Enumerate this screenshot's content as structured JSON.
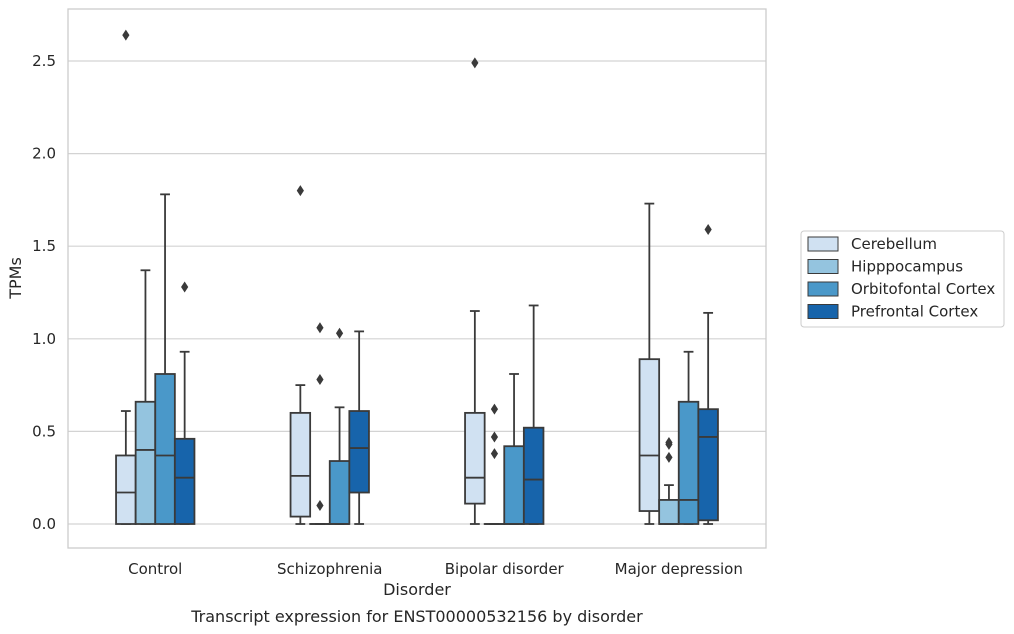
{
  "chart_data": {
    "type": "box",
    "xlabel": "Disorder",
    "ylabel": "TPMs",
    "caption": "Transcript expression for ENST00000532156 by disorder",
    "ylim": [
      -0.13,
      2.78
    ],
    "yticks": [
      "0.0",
      "0.5",
      "1.0",
      "1.5",
      "2.0",
      "2.5"
    ],
    "grid": "horizontal",
    "legend_position": "right",
    "categories": [
      "Control",
      "Schizophrenia",
      "Bipolar disorder",
      "Major depression"
    ],
    "series": [
      {
        "name": "Cerebellum",
        "color": "#d0e1f2",
        "boxes": [
          {
            "min": 0.0,
            "q1": 0.0,
            "median": 0.17,
            "q3": 0.37,
            "max": 0.61,
            "outliers": [
              2.64
            ]
          },
          {
            "min": 0.0,
            "q1": 0.04,
            "median": 0.26,
            "q3": 0.6,
            "max": 0.75,
            "outliers": [
              1.8
            ]
          },
          {
            "min": 0.0,
            "q1": 0.11,
            "median": 0.25,
            "q3": 0.6,
            "max": 1.15,
            "outliers": [
              2.49
            ]
          },
          {
            "min": 0.0,
            "q1": 0.07,
            "median": 0.37,
            "q3": 0.89,
            "max": 1.73,
            "outliers": []
          }
        ]
      },
      {
        "name": "Hipppocampus",
        "color": "#94c4df",
        "boxes": [
          {
            "min": 0.0,
            "q1": 0.0,
            "median": 0.4,
            "q3": 0.66,
            "max": 1.37,
            "outliers": []
          },
          {
            "min": 0.0,
            "q1": 0.0,
            "median": 0.0,
            "q3": 0.0,
            "max": 0.0,
            "outliers": [
              0.1,
              0.78,
              1.06
            ]
          },
          {
            "min": 0.0,
            "q1": 0.0,
            "median": 0.0,
            "q3": 0.0,
            "max": 0.0,
            "outliers": [
              0.38,
              0.47,
              0.62
            ]
          },
          {
            "min": 0.0,
            "q1": 0.0,
            "median": 0.0,
            "q3": 0.13,
            "max": 0.21,
            "outliers": [
              0.36,
              0.43,
              0.44
            ]
          }
        ]
      },
      {
        "name": "Orbitofontal Cortex",
        "color": "#4a98c9",
        "boxes": [
          {
            "min": 0.0,
            "q1": 0.0,
            "median": 0.37,
            "q3": 0.81,
            "max": 1.78,
            "outliers": []
          },
          {
            "min": 0.0,
            "q1": 0.0,
            "median": 0.0,
            "q3": 0.34,
            "max": 0.63,
            "outliers": [
              1.03
            ]
          },
          {
            "min": 0.0,
            "q1": 0.0,
            "median": 0.0,
            "q3": 0.42,
            "max": 0.81,
            "outliers": []
          },
          {
            "min": 0.0,
            "q1": 0.0,
            "median": 0.13,
            "q3": 0.66,
            "max": 0.93,
            "outliers": []
          }
        ]
      },
      {
        "name": "Prefrontal Cortex",
        "color": "#1764ab",
        "boxes": [
          {
            "min": 0.0,
            "q1": 0.0,
            "median": 0.25,
            "q3": 0.46,
            "max": 0.93,
            "outliers": [
              1.28
            ]
          },
          {
            "min": 0.0,
            "q1": 0.17,
            "median": 0.41,
            "q3": 0.61,
            "max": 1.04,
            "outliers": []
          },
          {
            "min": 0.0,
            "q1": 0.0,
            "median": 0.24,
            "q3": 0.52,
            "max": 1.18,
            "outliers": []
          },
          {
            "min": 0.0,
            "q1": 0.02,
            "median": 0.47,
            "q3": 0.62,
            "max": 1.14,
            "outliers": [
              1.59
            ]
          }
        ]
      }
    ]
  }
}
